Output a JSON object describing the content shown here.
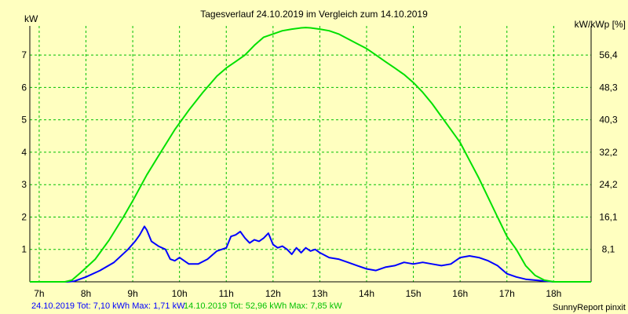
{
  "chart_data": {
    "type": "line",
    "title": "Tagesverlauf 24.10.2019 im Vergleich zum 14.10.2019",
    "ylabel": "kW",
    "ylabel_right": "kW/kWp [%]",
    "xlim": [
      6.8,
      18.8
    ],
    "ylim": [
      0,
      7.9
    ],
    "x_ticks": [
      {
        "value": 7,
        "label": "7h"
      },
      {
        "value": 8,
        "label": "8h"
      },
      {
        "value": 9,
        "label": "9h"
      },
      {
        "value": 10,
        "label": "10h"
      },
      {
        "value": 11,
        "label": "11h"
      },
      {
        "value": 12,
        "label": "12h"
      },
      {
        "value": 13,
        "label": "13h"
      },
      {
        "value": 14,
        "label": "14h"
      },
      {
        "value": 15,
        "label": "15h"
      },
      {
        "value": 16,
        "label": "16h"
      },
      {
        "value": 17,
        "label": "17h"
      },
      {
        "value": 18,
        "label": "18h"
      }
    ],
    "y_ticks": [
      1,
      2,
      3,
      4,
      5,
      6,
      7
    ],
    "y_ticks_right": [
      {
        "value": 1,
        "label": "8,1"
      },
      {
        "value": 2,
        "label": "16,1"
      },
      {
        "value": 3,
        "label": "24,2"
      },
      {
        "value": 4,
        "label": "32,2"
      },
      {
        "value": 5,
        "label": "40,3"
      },
      {
        "value": 6,
        "label": "48,3"
      },
      {
        "value": 7,
        "label": "56,4"
      }
    ],
    "grid": true,
    "series": [
      {
        "name": "24.10.2019",
        "color": "#0000ff",
        "x": [
          6.8,
          7.6,
          7.75,
          8.0,
          8.3,
          8.6,
          8.9,
          9.05,
          9.15,
          9.25,
          9.3,
          9.4,
          9.55,
          9.7,
          9.8,
          9.9,
          10.0,
          10.2,
          10.4,
          10.6,
          10.8,
          11.0,
          11.1,
          11.2,
          11.3,
          11.4,
          11.5,
          11.6,
          11.7,
          11.8,
          11.9,
          12.0,
          12.1,
          12.2,
          12.3,
          12.4,
          12.5,
          12.6,
          12.7,
          12.8,
          12.9,
          13.0,
          13.2,
          13.4,
          13.6,
          13.8,
          14.0,
          14.2,
          14.4,
          14.6,
          14.8,
          15.0,
          15.2,
          15.4,
          15.6,
          15.8,
          16.0,
          16.2,
          16.4,
          16.6,
          16.8,
          17.0,
          17.2,
          17.4,
          17.6,
          18.0,
          18.3,
          18.8
        ],
        "y": [
          0,
          0,
          0.02,
          0.15,
          0.35,
          0.6,
          1.0,
          1.25,
          1.45,
          1.71,
          1.6,
          1.25,
          1.1,
          1.0,
          0.7,
          0.65,
          0.75,
          0.55,
          0.55,
          0.7,
          0.95,
          1.05,
          1.4,
          1.45,
          1.55,
          1.35,
          1.2,
          1.3,
          1.25,
          1.35,
          1.5,
          1.15,
          1.05,
          1.1,
          1.0,
          0.85,
          1.05,
          0.9,
          1.05,
          0.95,
          1.0,
          0.9,
          0.75,
          0.7,
          0.6,
          0.5,
          0.4,
          0.35,
          0.45,
          0.5,
          0.6,
          0.55,
          0.6,
          0.55,
          0.5,
          0.55,
          0.75,
          0.8,
          0.75,
          0.65,
          0.5,
          0.25,
          0.15,
          0.08,
          0.05,
          0,
          0,
          0
        ]
      },
      {
        "name": "14.10.2019",
        "color": "#00e000",
        "x": [
          6.8,
          7.55,
          7.7,
          7.9,
          8.2,
          8.5,
          8.8,
          9.0,
          9.3,
          9.6,
          9.9,
          10.2,
          10.5,
          10.8,
          11.0,
          11.2,
          11.4,
          11.6,
          11.8,
          12.0,
          12.2,
          12.4,
          12.6,
          12.7,
          12.8,
          13.0,
          13.2,
          13.4,
          13.6,
          13.8,
          14.0,
          14.2,
          14.4,
          14.6,
          14.8,
          15.0,
          15.2,
          15.4,
          15.6,
          15.8,
          16.0,
          16.2,
          16.4,
          16.6,
          16.8,
          17.0,
          17.2,
          17.4,
          17.6,
          17.8,
          18.0,
          18.2,
          18.5,
          18.8
        ],
        "y": [
          0,
          0,
          0.05,
          0.3,
          0.7,
          1.3,
          2.0,
          2.5,
          3.3,
          4.0,
          4.7,
          5.3,
          5.85,
          6.35,
          6.6,
          6.8,
          7.0,
          7.3,
          7.55,
          7.65,
          7.75,
          7.8,
          7.84,
          7.85,
          7.84,
          7.8,
          7.75,
          7.65,
          7.5,
          7.35,
          7.2,
          7.0,
          6.8,
          6.6,
          6.4,
          6.15,
          5.85,
          5.5,
          5.1,
          4.7,
          4.3,
          3.75,
          3.2,
          2.6,
          2.0,
          1.4,
          1.0,
          0.5,
          0.2,
          0.05,
          0,
          0,
          0,
          0
        ]
      }
    ]
  },
  "footer": {
    "series_a_text": "24.10.2019 Tot: 7,10 kWh Max: 1,71 kW",
    "series_b_text": "14.10.2019 Tot: 52,96 kWh Max: 7,85 kW",
    "credit": "SunnyReport pinxit"
  }
}
